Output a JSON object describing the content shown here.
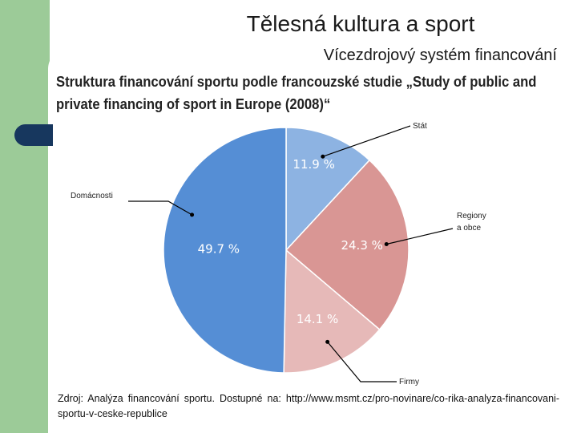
{
  "slide": {
    "title": "Tělesná kultura a sport",
    "subtitle": "Vícezdrojový systém financování",
    "source": "Zdroj: Analýza financování sportu. Dostupné na: http://www.msmt.cz/pro-novinare/co-rika-analyza-financovani-sportu-v-ceske-republice"
  },
  "chart_data": {
    "type": "pie",
    "title": "Struktura financování sportu podle francouzské studie „Study of public and private financing of sport in Europe (2008)“",
    "categories": [
      "Stát",
      "Regiony a obce",
      "Firmy",
      "Domácnosti"
    ],
    "values": [
      11.9,
      24.3,
      14.1,
      49.7
    ],
    "value_labels": [
      "11.9 %",
      "24.3 %",
      "14.1 %",
      "49.7 %"
    ],
    "colors": [
      "#8db3e2",
      "#d99694",
      "#e6b9b8",
      "#558ed5"
    ]
  }
}
